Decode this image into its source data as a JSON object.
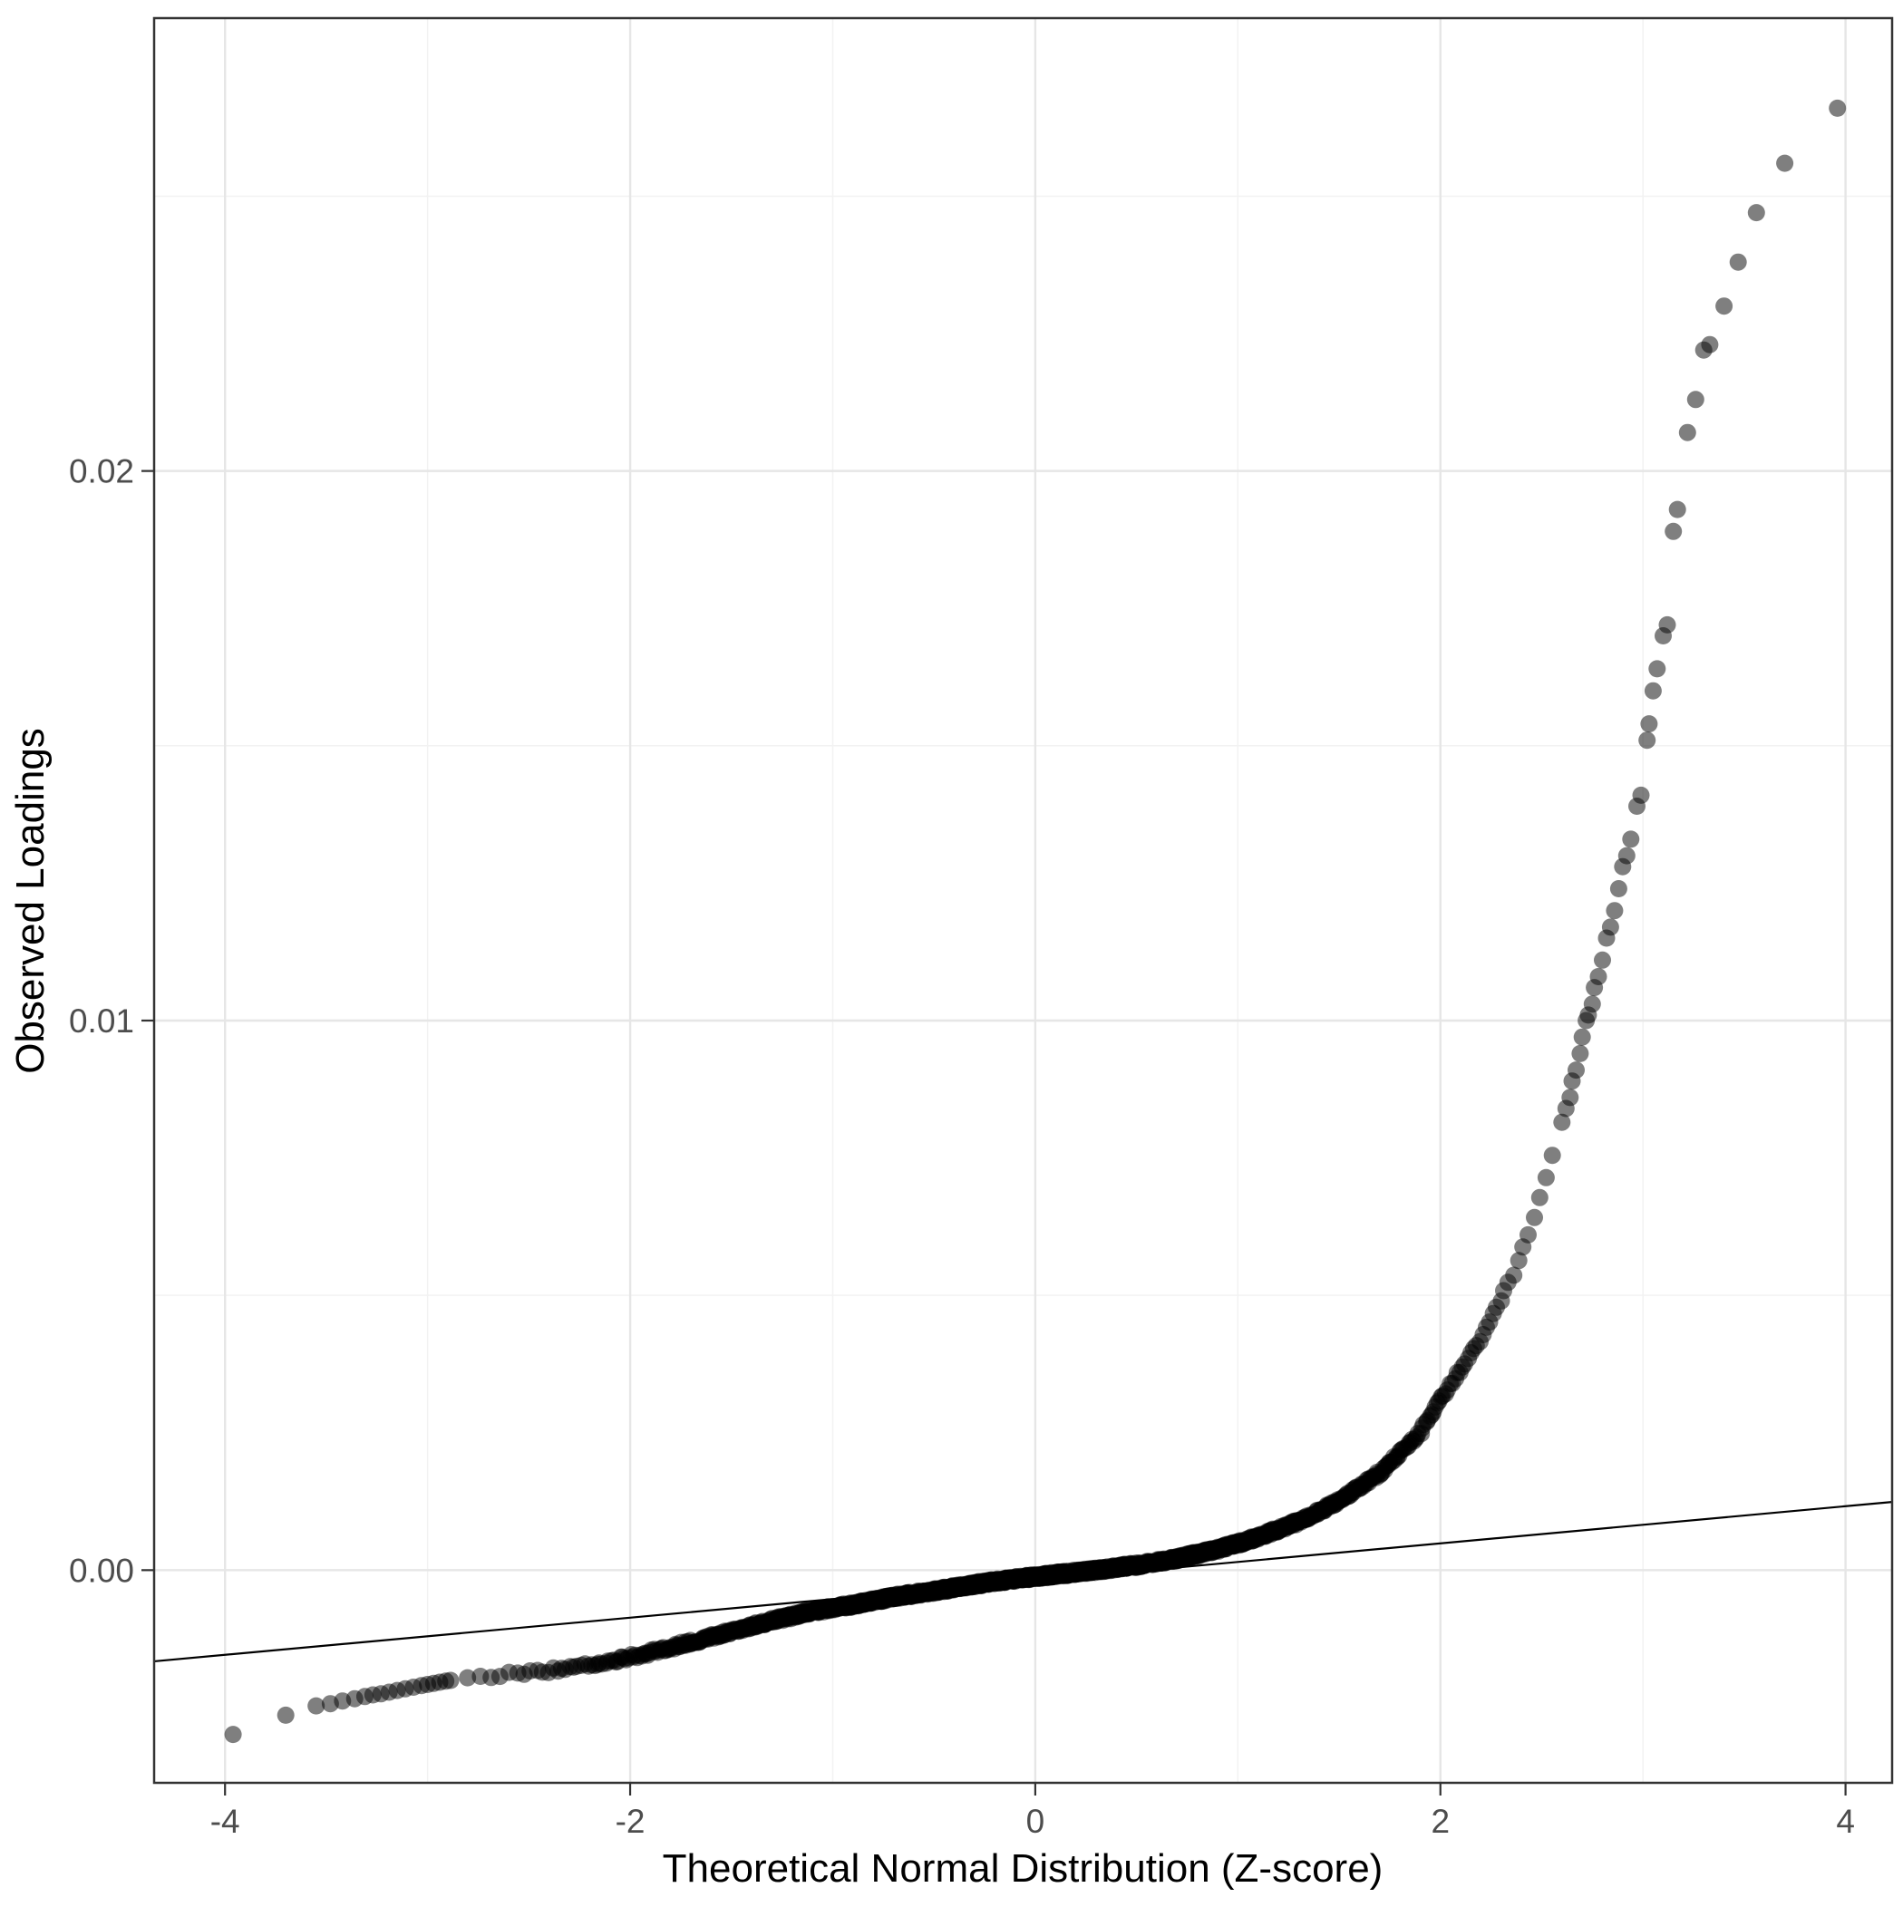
{
  "chart_data": {
    "type": "scatter",
    "title": "",
    "xlabel": "Theoretical Normal Distribution (Z-score)",
    "ylabel": "Observed Loadings",
    "x_ticks": [
      -4,
      -2,
      0,
      2,
      4
    ],
    "x_tick_labels": [
      "-4",
      "-2",
      "0",
      "2",
      "4"
    ],
    "x_minor_ticks": [
      -3,
      -1,
      1,
      3
    ],
    "y_ticks": [
      0,
      0.01,
      0.02
    ],
    "y_tick_labels": [
      "0.00",
      "0.01",
      "0.02"
    ],
    "y_minor_ticks": [
      0.005,
      0.015,
      0.025
    ],
    "xlim": [
      -4.35,
      4.23
    ],
    "ylim": [
      -0.00387,
      0.02824
    ],
    "grid": true,
    "legend": "none",
    "point_color": "#000000",
    "point_opacity": 0.5,
    "major_grid_color": "#e6e6e6",
    "minor_grid_color": "#f2f2f2",
    "panel_border_color": "#333333",
    "tick_label_color": "#4d4d4d",
    "axis_title_color": "#000000",
    "reference_line": {
      "slope": 0.000338,
      "intercept": -0.000189,
      "color": "#000000"
    },
    "n_dense_points": 1800,
    "dense_z_range": [
      -2.89,
      2.59
    ],
    "quantile_curve": [
      [
        -2.89,
        -0.00201
      ],
      [
        -2.7,
        -0.00193
      ],
      [
        -2.5,
        -0.00187
      ],
      [
        -2.3,
        -0.00178
      ],
      [
        -2.1,
        -0.00166
      ],
      [
        -1.9,
        -0.0015
      ],
      [
        -1.7,
        -0.00131
      ],
      [
        -1.5,
        -0.00111
      ],
      [
        -1.3,
        -0.00092
      ],
      [
        -1.1,
        -0.00075
      ],
      [
        -0.9,
        -0.00063
      ],
      [
        -0.7,
        -0.00049
      ],
      [
        -0.5,
        -0.00038
      ],
      [
        -0.3,
        -0.00026
      ],
      [
        -0.1,
        -0.00016
      ],
      [
        0.1,
        -8e-05
      ],
      [
        0.3,
        0.0
      ],
      [
        0.5,
        9e-05
      ],
      [
        0.7,
        0.00021
      ],
      [
        0.9,
        0.00038
      ],
      [
        1.1,
        0.0006
      ],
      [
        1.3,
        0.00088
      ],
      [
        1.5,
        0.00126
      ],
      [
        1.7,
        0.00176
      ],
      [
        1.9,
        0.0025
      ],
      [
        2.0,
        0.0031
      ],
      [
        2.1,
        0.00365
      ],
      [
        2.2,
        0.0042
      ],
      [
        2.35,
        0.0053
      ],
      [
        2.45,
        0.0063
      ],
      [
        2.52,
        0.0071
      ],
      [
        2.59,
        0.0079
      ]
    ],
    "upper_tail_points": [
      [
        2.6,
        0.00815
      ],
      [
        2.62,
        0.0084
      ],
      [
        2.64,
        0.0086
      ],
      [
        2.65,
        0.0089
      ],
      [
        2.67,
        0.0091
      ],
      [
        2.69,
        0.0094
      ],
      [
        2.7,
        0.0097
      ],
      [
        2.72,
        0.01
      ],
      [
        2.73,
        0.0101
      ],
      [
        2.75,
        0.0103
      ],
      [
        2.76,
        0.0106
      ],
      [
        2.78,
        0.0108
      ],
      [
        2.8,
        0.0111
      ],
      [
        2.82,
        0.0115
      ],
      [
        2.84,
        0.0117
      ],
      [
        2.86,
        0.012
      ],
      [
        2.88,
        0.0124
      ],
      [
        2.9,
        0.0128
      ],
      [
        2.92,
        0.013
      ],
      [
        2.94,
        0.0133
      ],
      [
        2.97,
        0.0139
      ],
      [
        2.99,
        0.0141
      ],
      [
        3.02,
        0.0151
      ],
      [
        3.03,
        0.0154
      ],
      [
        3.05,
        0.016
      ],
      [
        3.07,
        0.0164
      ],
      [
        3.1,
        0.017
      ],
      [
        3.12,
        0.0172
      ],
      [
        3.15,
        0.0189
      ],
      [
        3.17,
        0.0193
      ],
      [
        3.22,
        0.0207
      ],
      [
        3.26,
        0.0213
      ],
      [
        3.3,
        0.0222
      ],
      [
        3.33,
        0.0223
      ],
      [
        3.4,
        0.023
      ],
      [
        3.47,
        0.0238
      ],
      [
        3.56,
        0.0247
      ],
      [
        3.7,
        0.0256
      ],
      [
        3.96,
        0.0266
      ]
    ],
    "lower_tail_points": [
      [
        -3.96,
        -0.00299
      ],
      [
        -3.7,
        -0.00264
      ],
      [
        -3.55,
        -0.00247
      ],
      [
        -3.48,
        -0.00243
      ],
      [
        -3.42,
        -0.00238
      ],
      [
        -3.36,
        -0.00234
      ],
      [
        -3.31,
        -0.0023
      ],
      [
        -3.27,
        -0.00227
      ],
      [
        -3.23,
        -0.00225
      ],
      [
        -3.19,
        -0.00222
      ],
      [
        -3.15,
        -0.00219
      ],
      [
        -3.11,
        -0.00216
      ],
      [
        -3.07,
        -0.00213
      ],
      [
        -3.03,
        -0.0021
      ],
      [
        -3.0,
        -0.00208
      ],
      [
        -2.97,
        -0.00206
      ],
      [
        -2.94,
        -0.00204
      ],
      [
        -2.91,
        -0.00202
      ]
    ]
  }
}
